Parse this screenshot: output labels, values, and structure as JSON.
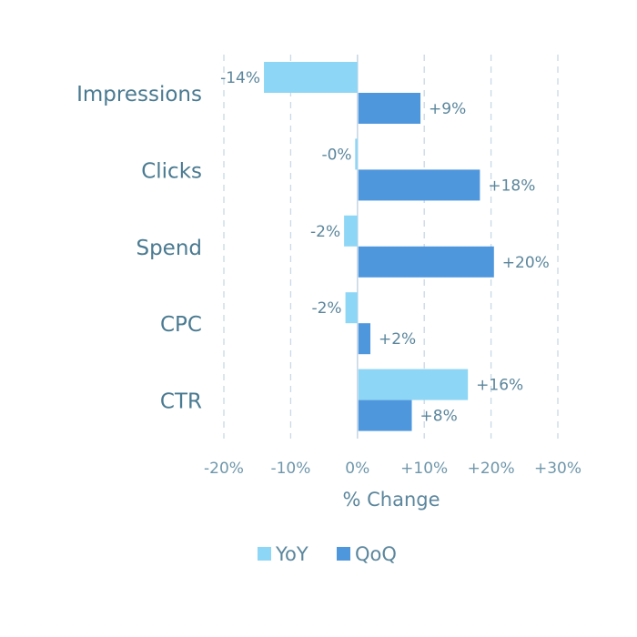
{
  "chart_data": {
    "type": "bar",
    "orientation": "horizontal",
    "categories": [
      "Impressions",
      "Clicks",
      "Spend",
      "CPC",
      "CTR"
    ],
    "series": [
      {
        "name": "YoY",
        "color": "#8dd6f5",
        "values": [
          -14,
          -0.3,
          -2,
          -1.8,
          16.4
        ],
        "labels": [
          "-14%",
          "-0%",
          "-2%",
          "-2%",
          "+16%"
        ]
      },
      {
        "name": "QoQ",
        "color": "#4f97dd",
        "values": [
          9.3,
          18.2,
          20.3,
          1.8,
          8
        ],
        "labels": [
          "+9%",
          "+18%",
          "+20%",
          "+2%",
          "+8%"
        ]
      }
    ],
    "xlim": [
      -20,
      30
    ],
    "xticks": [
      -20,
      -10,
      0,
      10,
      20,
      30
    ],
    "xtick_labels": [
      "-20%",
      "-10%",
      "0%",
      "+10%",
      "+20%",
      "+30%"
    ],
    "xlabel": "% Change",
    "ylabel": "",
    "title": "",
    "grid": "vertical dashed",
    "legend": "bottom-center"
  }
}
